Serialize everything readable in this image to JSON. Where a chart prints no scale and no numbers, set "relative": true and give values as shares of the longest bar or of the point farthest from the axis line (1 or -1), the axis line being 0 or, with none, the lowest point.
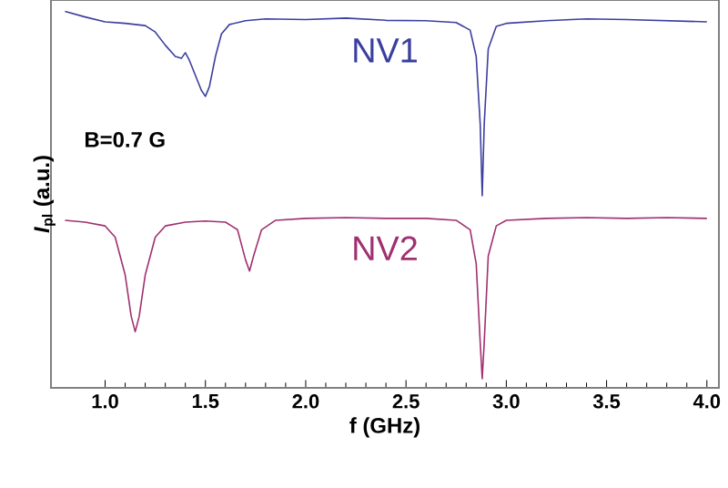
{
  "chart_data": {
    "type": "line",
    "relative": true,
    "xlabel": "f (GHz)",
    "ylabel": "*I*$_{pl}$ (a.u.)",
    "annotations": [
      "B=0.7 G"
    ],
    "xlim": [
      0.73,
      4.06
    ],
    "xticks": [
      {
        "value": 1,
        "label": "1.0"
      },
      {
        "value": 1.5,
        "label": "1.5"
      },
      {
        "value": 2,
        "label": "2.0"
      },
      {
        "value": 2.5,
        "label": "2.5"
      },
      {
        "value": 3,
        "label": "3.0"
      },
      {
        "value": 3.5,
        "label": "3.5"
      },
      {
        "value": 4,
        "label": "4.0"
      }
    ],
    "tick_labels": "x",
    "series": [
      {
        "name": "NV1",
        "color": "#3b3f9e",
        "x": [
          0.8,
          0.9,
          1.0,
          1.1,
          1.2,
          1.25,
          1.3,
          1.35,
          1.38,
          1.4,
          1.42,
          1.45,
          1.48,
          1.5,
          1.52,
          1.55,
          1.58,
          1.62,
          1.7,
          1.8,
          2.0,
          2.2,
          2.4,
          2.6,
          2.75,
          2.82,
          2.85,
          2.87,
          2.88,
          2.89,
          2.91,
          2.95,
          3.0,
          3.2,
          3.4,
          3.6,
          3.8,
          4.0
        ],
        "values": [
          1,
          0.985,
          0.972,
          0.968,
          0.962,
          0.945,
          0.91,
          0.88,
          0.875,
          0.89,
          0.87,
          0.83,
          0.79,
          0.774,
          0.8,
          0.88,
          0.94,
          0.965,
          0.975,
          0.98,
          0.978,
          0.982,
          0.976,
          0.975,
          0.97,
          0.95,
          0.88,
          0.7,
          0.51,
          0.7,
          0.9,
          0.96,
          0.968,
          0.975,
          0.98,
          0.978,
          0.975,
          0.972
        ]
      },
      {
        "name": "NV2",
        "color": "#a03070",
        "x": [
          0.8,
          0.9,
          1.0,
          1.05,
          1.1,
          1.13,
          1.15,
          1.17,
          1.2,
          1.25,
          1.3,
          1.4,
          1.5,
          1.6,
          1.66,
          1.7,
          1.72,
          1.74,
          1.78,
          1.85,
          2.0,
          2.2,
          2.4,
          2.6,
          2.75,
          2.82,
          2.85,
          2.87,
          2.88,
          2.89,
          2.91,
          2.95,
          3.0,
          3.2,
          3.4,
          3.6,
          3.8,
          4.0
        ],
        "values": [
          0.445,
          0.44,
          0.43,
          0.4,
          0.3,
          0.19,
          0.149,
          0.19,
          0.3,
          0.4,
          0.43,
          0.44,
          0.443,
          0.44,
          0.42,
          0.34,
          0.31,
          0.35,
          0.42,
          0.445,
          0.45,
          0.452,
          0.45,
          0.45,
          0.445,
          0.42,
          0.33,
          0.12,
          0.024,
          0.12,
          0.35,
          0.43,
          0.445,
          0.45,
          0.452,
          0.45,
          0.452,
          0.45
        ]
      }
    ]
  }
}
